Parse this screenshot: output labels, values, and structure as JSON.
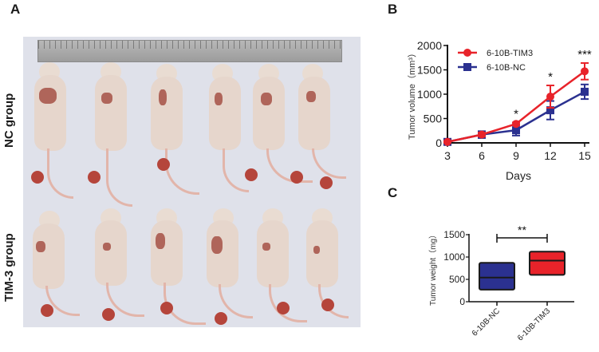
{
  "panels": {
    "a": {
      "letter": "A",
      "group_labels": [
        "NC group",
        "TIM-3 group"
      ]
    },
    "b": {
      "letter": "B"
    },
    "c": {
      "letter": "C"
    }
  },
  "chart_data": [
    {
      "type": "line",
      "title": "",
      "xlabel": "Days",
      "ylabel": "Tumor volume（mm³）",
      "x": [
        3,
        6,
        9,
        12,
        15
      ],
      "ylim": [
        0,
        2000
      ],
      "yticks": [
        0,
        500,
        1000,
        1500,
        2000
      ],
      "series": [
        {
          "name": "6-10B-TIM3",
          "color": "#e8232a",
          "marker": "circle",
          "values": [
            20,
            170,
            390,
            950,
            1470
          ],
          "errors": [
            10,
            40,
            30,
            230,
            170
          ]
        },
        {
          "name": "6-10B-NC",
          "color": "#2b3190",
          "marker": "square",
          "values": [
            20,
            170,
            260,
            670,
            1050
          ],
          "errors": [
            10,
            70,
            110,
            190,
            150
          ]
        }
      ],
      "annotations": [
        {
          "x": 9,
          "text": "*"
        },
        {
          "x": 12,
          "text": "*"
        },
        {
          "x": 15,
          "text": "***"
        }
      ],
      "legend_position": "top-left"
    },
    {
      "type": "box",
      "title": "",
      "xlabel": "",
      "ylabel": "Tumor weight（mg）",
      "categories": [
        "6-10B-NC",
        "6-10B-TIM3"
      ],
      "ylim": [
        0,
        1500
      ],
      "yticks": [
        0,
        500,
        1000,
        1500
      ],
      "series": [
        {
          "name": "6-10B-NC",
          "color": "#2b3190",
          "q1": 270,
          "median": 540,
          "q3": 870
        },
        {
          "name": "6-10B-TIM3",
          "color": "#e8232a",
          "q1": 600,
          "median": 920,
          "q3": 1120
        }
      ],
      "annotations": [
        {
          "text": "**",
          "between": [
            "6-10B-NC",
            "6-10B-TIM3"
          ]
        }
      ]
    }
  ]
}
